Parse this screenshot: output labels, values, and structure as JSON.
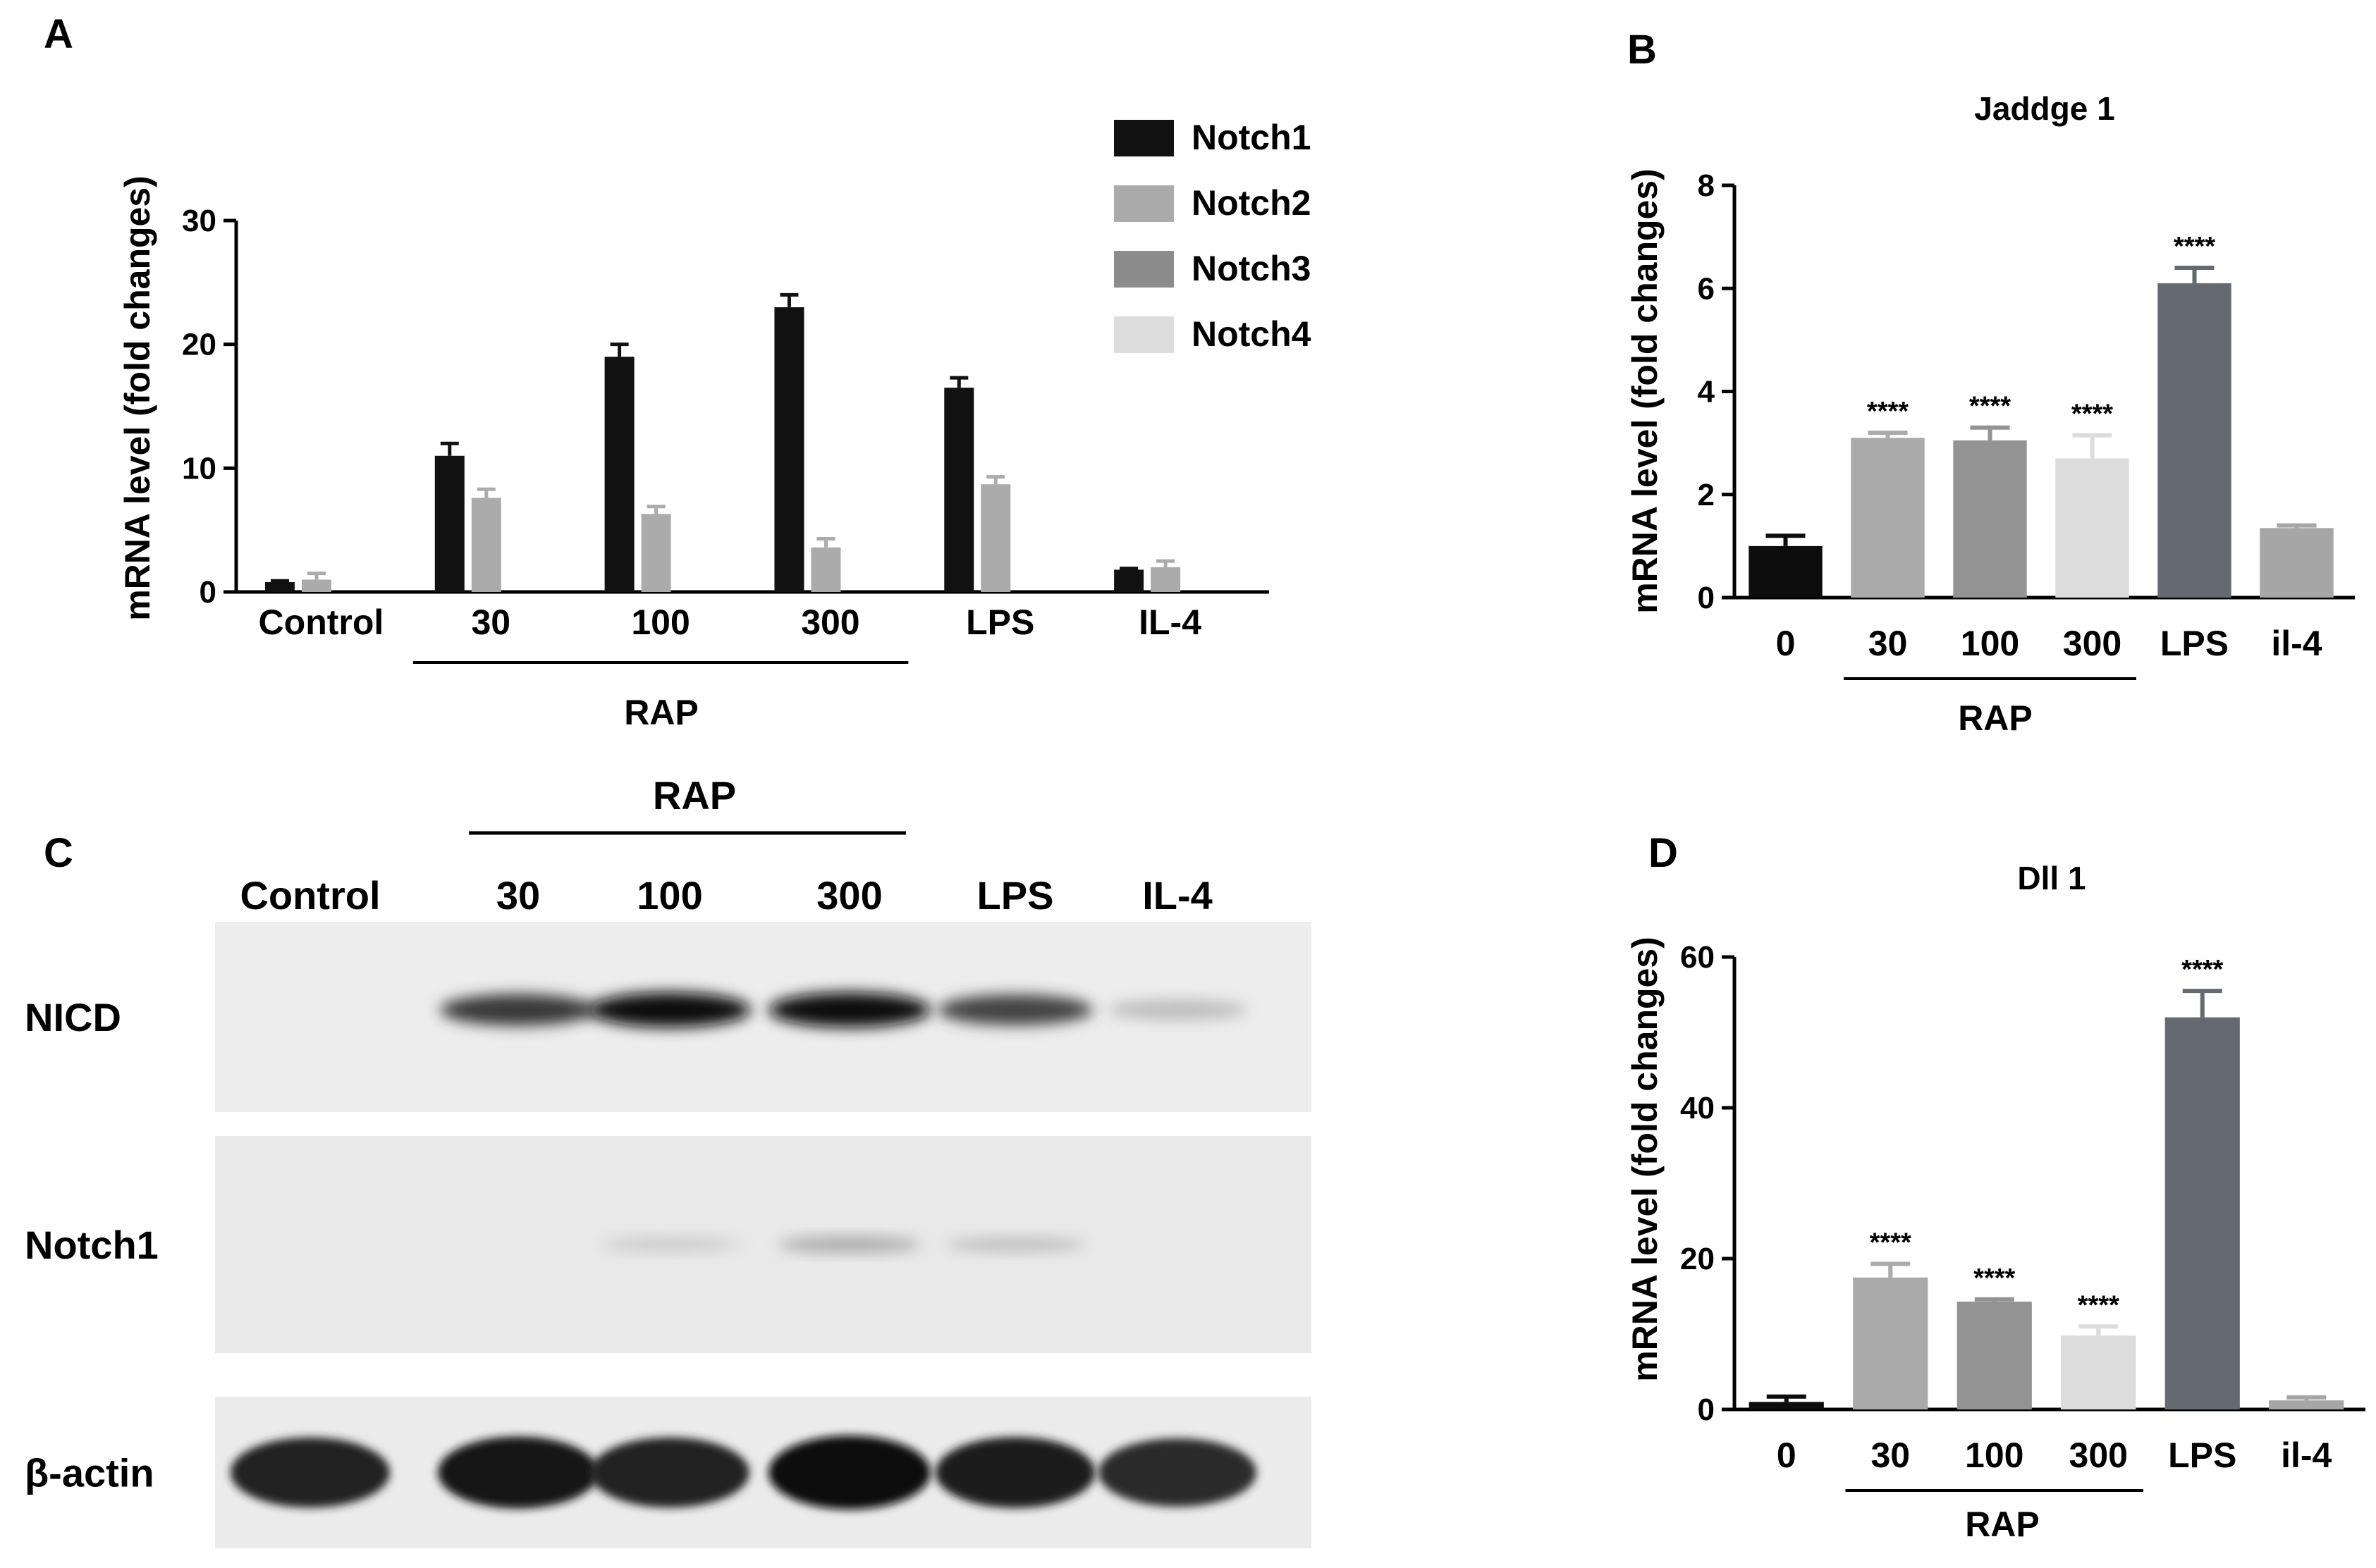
{
  "panels": {
    "A": "A",
    "B": "B",
    "C": "C",
    "D": "D"
  },
  "chart_data": [
    {
      "panel": "A",
      "type": "bar",
      "title": "",
      "xlabel": "",
      "ylabel": "mRNA level (fold changes)",
      "ylim": [
        0,
        30
      ],
      "yticks": [
        0,
        10,
        20,
        30
      ],
      "categories": [
        "Control",
        "30",
        "100",
        "300",
        "LPS",
        "IL-4"
      ],
      "group_label": "RAP",
      "group_span": [
        "30",
        "300"
      ],
      "legend_position": "top-right",
      "series": [
        {
          "name": "Notch1",
          "color": "#111111",
          "values": [
            0.8,
            11.0,
            19.0,
            23.0,
            16.5,
            1.8
          ],
          "errors": [
            0.1,
            1.0,
            1.0,
            1.0,
            0.8,
            0.1
          ]
        },
        {
          "name": "Notch2",
          "color": "#ababab",
          "values": [
            1.0,
            7.6,
            6.3,
            3.6,
            8.7,
            2.0
          ],
          "errors": [
            0.5,
            0.7,
            0.6,
            0.7,
            0.6,
            0.5
          ]
        },
        {
          "name": "Notch3",
          "color": "#8c8c8c",
          "values": [
            null,
            null,
            null,
            null,
            null,
            null
          ],
          "errors": []
        },
        {
          "name": "Notch4",
          "color": "#dcdcdc",
          "values": [
            null,
            null,
            null,
            null,
            null,
            null
          ],
          "errors": []
        }
      ]
    },
    {
      "panel": "B",
      "type": "bar",
      "title": "Jaddge 1",
      "xlabel": "",
      "ylabel": "mRNA level (fold changes)",
      "ylim": [
        0,
        8
      ],
      "yticks": [
        0,
        2,
        4,
        6,
        8
      ],
      "categories": [
        "0",
        "30",
        "100",
        "300",
        "LPS",
        "il-4"
      ],
      "group_label": "RAP",
      "group_span": [
        "30",
        "300"
      ],
      "values": [
        1.0,
        3.1,
        3.05,
        2.7,
        6.1,
        1.35
      ],
      "errors": [
        0.2,
        0.1,
        0.25,
        0.45,
        0.3,
        0.05
      ],
      "colors": [
        "#0d0d0d",
        "#aaaaaa",
        "#939393",
        "#dcdcdc",
        "#646a70",
        "#a6a6a6"
      ],
      "significance": [
        "",
        "****",
        "****",
        "****",
        "****",
        ""
      ]
    },
    {
      "panel": "D",
      "type": "bar",
      "title": "Dll 1",
      "xlabel": "",
      "ylabel": "mRNA level (fold changes)",
      "ylim": [
        0,
        60
      ],
      "yticks": [
        0,
        20,
        40,
        60
      ],
      "categories": [
        "0",
        "30",
        "100",
        "300",
        "LPS",
        "il-4"
      ],
      "group_label": "RAP",
      "group_span": [
        "30",
        "300"
      ],
      "values": [
        1.0,
        17.5,
        14.3,
        9.8,
        52.0,
        1.2
      ],
      "errors": [
        0.7,
        1.8,
        0.3,
        1.2,
        3.5,
        0.4
      ],
      "colors": [
        "#0d0d0d",
        "#aaaaaa",
        "#939393",
        "#dcdcdc",
        "#646a70",
        "#a6a6a6"
      ],
      "significance": [
        "",
        "****",
        "****",
        "****",
        "****",
        ""
      ]
    }
  ],
  "blot": {
    "group_label": "RAP",
    "lanes": [
      "Control",
      "30",
      "100",
      "300",
      "LPS",
      "IL-4"
    ],
    "rows": [
      {
        "label": "NICD",
        "intensity": [
          0.0,
          0.8,
          1.0,
          1.0,
          0.75,
          0.2
        ]
      },
      {
        "label": "Notch1",
        "intensity": [
          0.0,
          0.0,
          0.15,
          0.3,
          0.2,
          0.0
        ]
      },
      {
        "label": "β-actin",
        "intensity": [
          0.9,
          0.95,
          0.9,
          1.0,
          0.92,
          0.85
        ]
      }
    ]
  }
}
